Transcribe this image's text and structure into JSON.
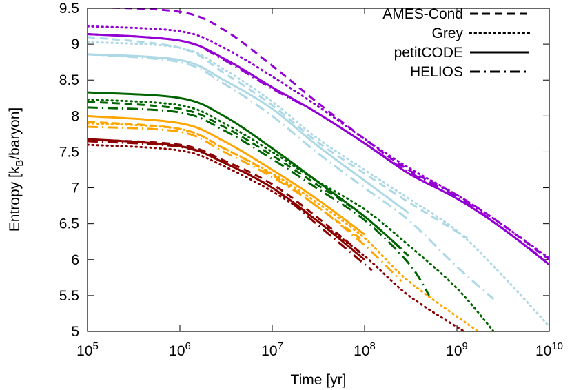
{
  "chart_data": {
    "type": "line",
    "x_scale": "log",
    "xlabel": "Time [yr]",
    "ylabel": [
      "Entropy [k",
      "B",
      "/baryon]"
    ],
    "xlim": [
      100000.0,
      10000000000.0
    ],
    "ylim": [
      5,
      9.5
    ],
    "xticks": [
      {
        "value": 100000.0,
        "label": "10",
        "exponent": "5"
      },
      {
        "value": 1000000.0,
        "label": "10",
        "exponent": "6"
      },
      {
        "value": 10000000.0,
        "label": "10",
        "exponent": "7"
      },
      {
        "value": 100000000.0,
        "label": "10",
        "exponent": "8"
      },
      {
        "value": 1000000000.0,
        "label": "10",
        "exponent": "9"
      },
      {
        "value": 10000000000.0,
        "label": "10",
        "exponent": "10"
      }
    ],
    "yticks": [
      5,
      5.5,
      6,
      6.5,
      7,
      7.5,
      8,
      8.5,
      9,
      9.5
    ],
    "legend_position": "upper right",
    "legend": [
      {
        "name": "AMES-Cond",
        "dash": "dashed"
      },
      {
        "name": "Grey",
        "dash": "dotted"
      },
      {
        "name": "petitCODE",
        "dash": "solid"
      },
      {
        "name": "HELIOS",
        "dash": "dashdot"
      }
    ],
    "series": [
      {
        "color": "#9400d3",
        "dash": "dashed",
        "x": [
          100000.0,
          1000000.0,
          3000000.0,
          10000000.0,
          30000000.0,
          100000000.0,
          300000000.0,
          1000000000.0,
          3000000000.0,
          10000000000.0
        ],
        "values": [
          9.52,
          9.45,
          9.2,
          8.7,
          8.2,
          7.68,
          7.25,
          6.9,
          6.5,
          6.0
        ]
      },
      {
        "color": "#9400d3",
        "dash": "dotted",
        "x": [
          100000.0,
          1000000.0,
          3000000.0,
          10000000.0,
          30000000.0,
          100000000.0,
          300000000.0,
          1000000000.0,
          3000000000.0,
          10000000000.0
        ],
        "values": [
          9.25,
          9.18,
          8.95,
          8.55,
          8.15,
          7.68,
          7.28,
          6.9,
          6.5,
          6.02
        ]
      },
      {
        "color": "#9400d3",
        "dash": "solid",
        "x": [
          100000.0,
          1000000.0,
          3000000.0,
          10000000.0,
          30000000.0,
          100000000.0,
          300000000.0,
          1000000000.0,
          3000000000.0,
          10000000000.0
        ],
        "values": [
          9.14,
          9.05,
          8.8,
          8.4,
          8.05,
          7.62,
          7.2,
          6.85,
          6.45,
          5.93
        ]
      },
      {
        "color": "#9400d3",
        "dash": "dashdot",
        "x": [
          100000.0,
          1000000.0,
          3000000.0,
          10000000.0,
          30000000.0,
          100000000.0,
          300000000.0,
          1000000000.0,
          3000000000.0,
          9000000000.0
        ],
        "values": [
          9.14,
          9.05,
          8.78,
          8.38,
          8.05,
          7.62,
          7.22,
          6.88,
          6.45,
          5.99
        ]
      },
      {
        "color": "#add8e6",
        "dash": "dotted",
        "x": [
          100000.0,
          1000000.0,
          3000000.0,
          10000000.0,
          30000000.0,
          100000000.0,
          300000000.0,
          1000000000.0,
          3000000000.0,
          10000000000.0
        ],
        "values": [
          9.03,
          8.95,
          8.65,
          8.2,
          7.7,
          7.25,
          6.85,
          6.4,
          5.8,
          5.07
        ]
      },
      {
        "color": "#add8e6",
        "dash": "dashed",
        "x": [
          100000.0,
          1000000.0,
          3000000.0,
          10000000.0,
          30000000.0,
          100000000.0,
          300000000.0,
          1300000000.0
        ],
        "values": [
          9.1,
          8.95,
          8.6,
          8.15,
          7.65,
          7.2,
          6.8,
          6.3
        ]
      },
      {
        "color": "#add8e6",
        "dash": "solid",
        "x": [
          100000.0,
          1000000.0,
          3000000.0,
          10000000.0,
          30000000.0,
          100000000.0,
          300000000.0
        ],
        "values": [
          8.86,
          8.78,
          8.5,
          8.1,
          7.6,
          7.1,
          6.65
        ]
      },
      {
        "color": "#add8e6",
        "dash": "dashdot",
        "x": [
          100000.0,
          1000000.0,
          3000000.0,
          10000000.0,
          30000000.0,
          100000000.0,
          300000000.0,
          1000000000.0,
          2500000000.0
        ],
        "values": [
          8.86,
          8.75,
          8.45,
          8.0,
          7.5,
          7.0,
          6.55,
          5.9,
          5.45
        ]
      },
      {
        "color": "#006400",
        "dash": "dotted",
        "x": [
          100000.0,
          1000000.0,
          3000000.0,
          10000000.0,
          30000000.0,
          100000000.0,
          300000000.0,
          1000000000.0,
          2500000000.0
        ],
        "values": [
          8.23,
          8.15,
          7.9,
          7.5,
          7.1,
          6.7,
          6.2,
          5.6,
          5.0
        ]
      },
      {
        "color": "#006400",
        "dash": "solid",
        "x": [
          100000.0,
          1000000.0,
          3000000.0,
          10000000.0,
          30000000.0,
          100000000.0,
          250000000.0
        ],
        "values": [
          8.33,
          8.25,
          8.0,
          7.55,
          7.1,
          6.6,
          6.15
        ]
      },
      {
        "color": "#006400",
        "dash": "dashdot",
        "x": [
          100000.0,
          1000000.0,
          3000000.0,
          10000000.0,
          30000000.0,
          100000000.0,
          300000000.0,
          500000000.0
        ],
        "values": [
          8.12,
          8.05,
          7.8,
          7.4,
          7.0,
          6.55,
          5.95,
          5.5
        ]
      },
      {
        "color": "#006400",
        "dash": "dashed",
        "x": [
          100000.0,
          1000000.0,
          3000000.0,
          10000000.0,
          30000000.0,
          100000000.0,
          300000000.0
        ],
        "values": [
          8.2,
          8.1,
          7.85,
          7.45,
          7.05,
          6.6,
          6.05
        ]
      },
      {
        "color": "#ffa500",
        "dash": "solid",
        "x": [
          100000.0,
          1000000.0,
          3000000.0,
          10000000.0,
          30000000.0,
          100000000.0
        ],
        "values": [
          8.0,
          7.9,
          7.65,
          7.25,
          6.85,
          6.35
        ]
      },
      {
        "color": "#ffa500",
        "dash": "dotted",
        "x": [
          100000.0,
          1000000.0,
          3000000.0,
          10000000.0,
          30000000.0,
          100000000.0,
          300000000.0,
          1700000000.0
        ],
        "values": [
          7.9,
          7.82,
          7.55,
          7.2,
          6.8,
          6.3,
          5.7,
          5.0
        ]
      },
      {
        "color": "#ffa500",
        "dash": "dashdot",
        "x": [
          100000.0,
          1000000.0,
          3000000.0,
          10000000.0,
          30000000.0,
          100000000.0,
          250000000.0
        ],
        "values": [
          7.85,
          7.78,
          7.5,
          7.15,
          6.75,
          6.2,
          5.7
        ]
      },
      {
        "color": "#ffa500",
        "dash": "dashed",
        "x": [
          100000.0,
          1000000.0,
          3000000.0,
          10000000.0,
          30000000.0,
          100000000.0
        ],
        "values": [
          7.92,
          7.82,
          7.55,
          7.18,
          6.75,
          6.25
        ]
      },
      {
        "color": "#8b0000",
        "dash": "solid",
        "x": [
          100000.0,
          1000000.0,
          3000000.0,
          10000000.0,
          30000000.0,
          100000000.0
        ],
        "values": [
          7.68,
          7.58,
          7.35,
          7.0,
          6.55,
          6.0
        ]
      },
      {
        "color": "#8b0000",
        "dash": "dashed",
        "x": [
          100000.0,
          1000000.0,
          3000000.0,
          10000000.0,
          30000000.0,
          100000000.0
        ],
        "values": [
          7.67,
          7.6,
          7.38,
          7.05,
          6.6,
          6.05
        ]
      },
      {
        "color": "#8b0000",
        "dash": "dotted",
        "x": [
          100000.0,
          1000000.0,
          3000000.0,
          10000000.0,
          30000000.0,
          100000000.0,
          300000000.0,
          1200000000.0
        ],
        "values": [
          7.6,
          7.52,
          7.3,
          6.95,
          6.55,
          6.05,
          5.5,
          5.0
        ]
      },
      {
        "color": "#8b0000",
        "dash": "dashdot",
        "x": [
          100000.0,
          1000000.0,
          3000000.0,
          10000000.0,
          30000000.0,
          120000000.0
        ],
        "values": [
          7.65,
          7.57,
          7.35,
          7.0,
          6.5,
          5.85
        ]
      }
    ]
  }
}
